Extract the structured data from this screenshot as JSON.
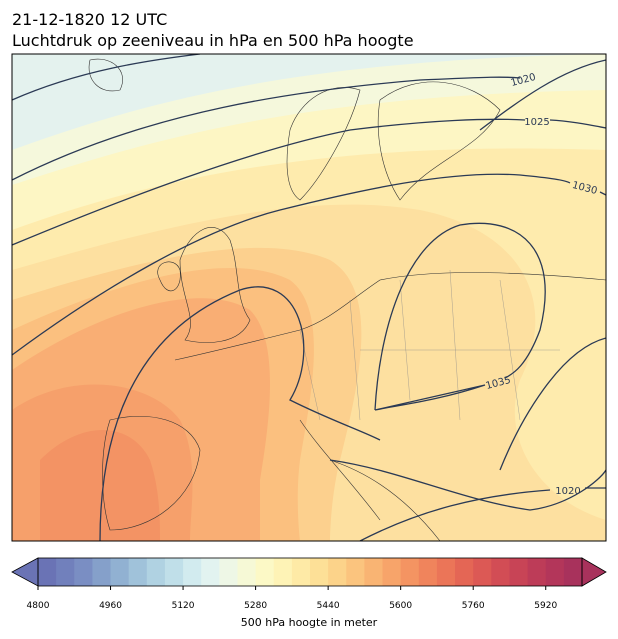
{
  "header": {
    "date": "21-12-1820 12 UTC",
    "title": "Luchtdruk op zeeniveau in hPa en 500 hPa hoogte"
  },
  "isobar_labels": [
    1020,
    1025,
    1030,
    1035,
    1020
  ],
  "colorbar": {
    "label": "500 hPa hoogte in meter",
    "lim": [
      4800,
      6000
    ],
    "ticks": [
      4800,
      4960,
      5120,
      5280,
      5440,
      5600,
      5760,
      5920
    ],
    "colors": [
      "#6a73b5",
      "#7180bc",
      "#7a8ec3",
      "#85a0ca",
      "#91b1d2",
      "#a0c2da",
      "#b0d2e2",
      "#c0dfe9",
      "#d2ebef",
      "#e2f3f0",
      "#eef7e6",
      "#f6f9d6",
      "#fcf9c6",
      "#fef3b6",
      "#feeaa6",
      "#fde097",
      "#fcd38a",
      "#fbc47e",
      "#f9b473",
      "#f7a46a",
      "#f49462",
      "#f0845c",
      "#eb7558",
      "#e46655",
      "#dc5955",
      "#d24d55",
      "#c84456",
      "#bd3c58",
      "#b3365a",
      "#a8325c"
    ]
  }
}
